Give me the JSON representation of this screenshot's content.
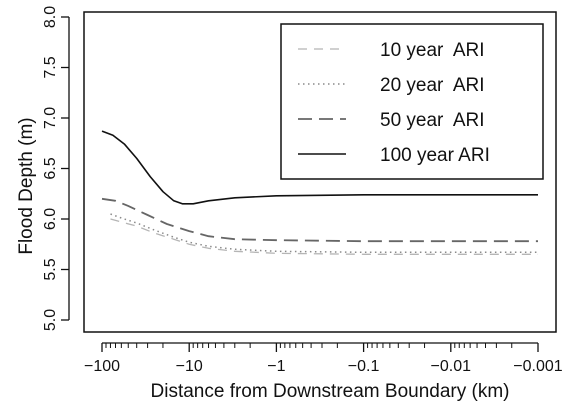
{
  "chart_data": {
    "type": "line",
    "xlabel": "Distance from Downstream Boundary (km)",
    "ylabel": "Flood Depth (m)",
    "x_scale": "log",
    "xlim": [
      -100,
      -0.001
    ],
    "ylim": [
      5.0,
      8.0
    ],
    "x_ticks": [
      {
        "value": -100,
        "label": "−100"
      },
      {
        "value": -10,
        "label": "−10"
      },
      {
        "value": -1,
        "label": "−1"
      },
      {
        "value": -0.1,
        "label": "−0.1"
      },
      {
        "value": -0.01,
        "label": "−0.01"
      },
      {
        "value": -0.001,
        "label": "−0.001"
      }
    ],
    "y_ticks": [
      "5.0",
      "5.5",
      "6.0",
      "6.5",
      "7.0",
      "7.5",
      "8.0"
    ],
    "grid": false,
    "legend_position": "top-right",
    "series": [
      {
        "name": "10 year  ARI",
        "style": "dashed-light",
        "color": "#b5b5b5",
        "points": [
          [
            -80,
            6.0
          ],
          [
            -60,
            5.97
          ],
          [
            -40,
            5.93
          ],
          [
            -25,
            5.86
          ],
          [
            -15,
            5.8
          ],
          [
            -10,
            5.75
          ],
          [
            -6,
            5.71
          ],
          [
            -3,
            5.68
          ],
          [
            -1,
            5.66
          ],
          [
            -0.1,
            5.65
          ],
          [
            -0.01,
            5.65
          ],
          [
            -0.001,
            5.65
          ]
        ]
      },
      {
        "name": "20 year  ARI",
        "style": "dotted",
        "color": "#8a8a8a",
        "points": [
          [
            -80,
            6.05
          ],
          [
            -60,
            6.01
          ],
          [
            -40,
            5.96
          ],
          [
            -25,
            5.89
          ],
          [
            -15,
            5.82
          ],
          [
            -10,
            5.77
          ],
          [
            -6,
            5.73
          ],
          [
            -3,
            5.7
          ],
          [
            -1,
            5.68
          ],
          [
            -0.1,
            5.67
          ],
          [
            -0.01,
            5.67
          ],
          [
            -0.001,
            5.67
          ]
        ]
      },
      {
        "name": "50 year  ARI",
        "style": "dashed",
        "color": "#666666",
        "points": [
          [
            -100,
            6.2
          ],
          [
            -70,
            6.18
          ],
          [
            -50,
            6.13
          ],
          [
            -30,
            6.04
          ],
          [
            -18,
            5.95
          ],
          [
            -10,
            5.88
          ],
          [
            -6,
            5.83
          ],
          [
            -3,
            5.8
          ],
          [
            -1,
            5.79
          ],
          [
            -0.1,
            5.78
          ],
          [
            -0.01,
            5.78
          ],
          [
            -0.001,
            5.78
          ]
        ]
      },
      {
        "name": "100 year ARI",
        "style": "solid",
        "color": "#111111",
        "points": [
          [
            -100,
            6.87
          ],
          [
            -75,
            6.83
          ],
          [
            -55,
            6.74
          ],
          [
            -40,
            6.6
          ],
          [
            -28,
            6.42
          ],
          [
            -20,
            6.27
          ],
          [
            -15,
            6.18
          ],
          [
            -12,
            6.15
          ],
          [
            -9,
            6.15
          ],
          [
            -6,
            6.18
          ],
          [
            -3,
            6.21
          ],
          [
            -1,
            6.23
          ],
          [
            -0.1,
            6.24
          ],
          [
            -0.01,
            6.24
          ],
          [
            -0.001,
            6.24
          ]
        ]
      }
    ]
  }
}
